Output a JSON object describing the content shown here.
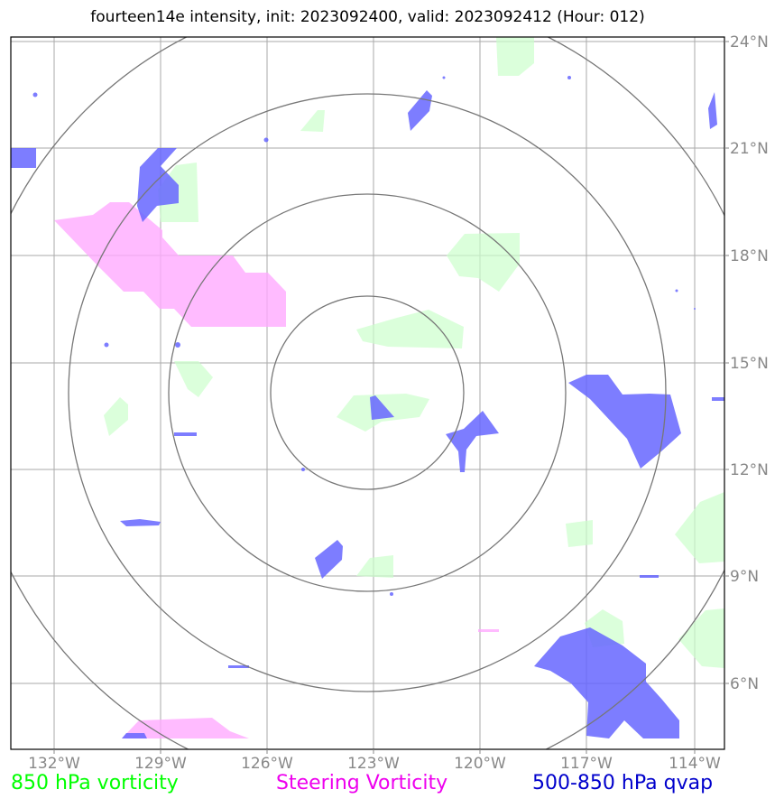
{
  "title": "fourteen14e intensity, init: 2023092400, valid: 2023092412 (Hour: 012)",
  "lon_labels": [
    "132°W",
    "129°W",
    "126°W",
    "123°W",
    "120°W",
    "117°W",
    "114°W"
  ],
  "lat_labels": [
    "24°N",
    "21°N",
    "18°N",
    "15°N",
    "12°N",
    "9°N",
    "6°N"
  ],
  "legend": {
    "vort850": "850 hPa vorticity",
    "steering": "Steering Vorticity",
    "qvap": "500-850 hPa qvap"
  },
  "colors": {
    "vort850": "#00ff00",
    "steering": "#ee00ee",
    "qvap": "#0000cc",
    "vort850_fill": "#ccffcc",
    "steering_fill": "#ffaaff",
    "qvap_fill": "#6666ff",
    "grid": "#aaaaaa",
    "rings": "#777777"
  },
  "map": {
    "lon_range": [
      -133.2,
      -113.2
    ],
    "lat_range": [
      4.5,
      24.5
    ],
    "center": {
      "lon": -123.0,
      "lat": 14.2
    },
    "gridlines": true
  }
}
